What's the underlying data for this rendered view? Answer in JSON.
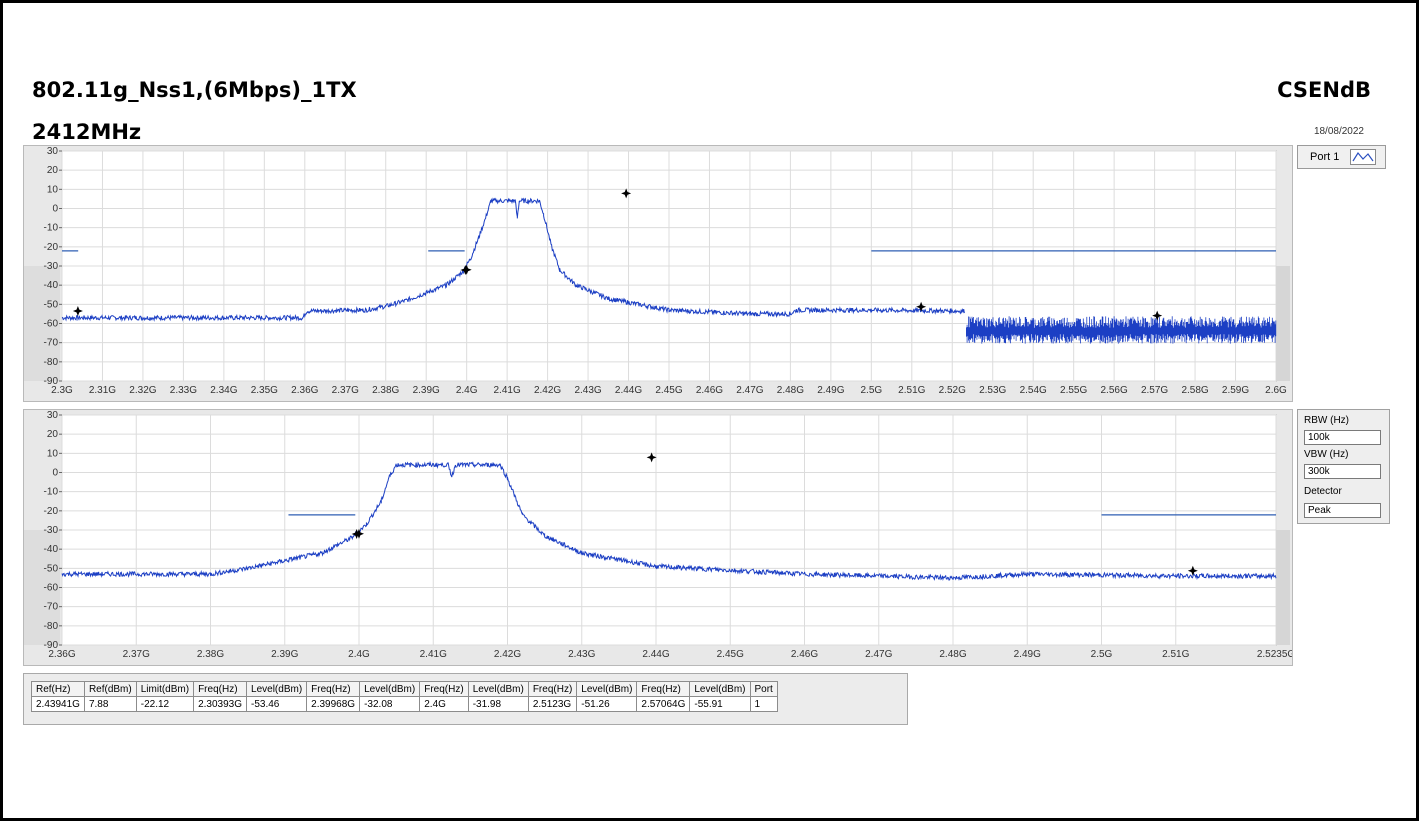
{
  "header": {
    "title": "802.11g_Nss1,(6Mbps)_1TX",
    "frequency": "2412MHz",
    "test_name": "CSENdB",
    "date": "18/08/2022"
  },
  "legend": {
    "label": "Port 1"
  },
  "settings": {
    "rbw_label": "RBW (Hz)",
    "rbw_value": "100k",
    "vbw_label": "VBW (Hz)",
    "vbw_value": "300k",
    "detector_label": "Detector",
    "detector_value": "Peak"
  },
  "colors": {
    "trace": "#1c3fc4",
    "limit": "#2f5fb3",
    "grid": "#dcdcdc",
    "shade": "#d6d6d6"
  },
  "chart_data": [
    {
      "type": "line",
      "name": "full-span",
      "xlim": [
        2.3,
        2.6
      ],
      "ylim": [
        -90,
        30
      ],
      "x_ticks": [
        2.3,
        2.31,
        2.32,
        2.33,
        2.34,
        2.35,
        2.36,
        2.37,
        2.38,
        2.39,
        2.4,
        2.41,
        2.42,
        2.43,
        2.44,
        2.45,
        2.46,
        2.47,
        2.48,
        2.49,
        2.5,
        2.51,
        2.52,
        2.53,
        2.54,
        2.55,
        2.56,
        2.57,
        2.58,
        2.59,
        2.6
      ],
      "x_tick_labels": [
        "2.3G",
        "2.31G",
        "2.32G",
        "2.33G",
        "2.34G",
        "2.35G",
        "2.36G",
        "2.37G",
        "2.38G",
        "2.39G",
        "2.4G",
        "2.41G",
        "2.42G",
        "2.43G",
        "2.44G",
        "2.45G",
        "2.46G",
        "2.47G",
        "2.48G",
        "2.49G",
        "2.5G",
        "2.51G",
        "2.52G",
        "2.53G",
        "2.54G",
        "2.55G",
        "2.56G",
        "2.57G",
        "2.58G",
        "2.59G",
        "2.6G"
      ],
      "y_ticks": [
        30,
        20,
        10,
        0,
        -10,
        -20,
        -30,
        -40,
        -50,
        -60,
        -70,
        -80,
        -90
      ],
      "trace": [
        [
          2.3,
          -57
        ],
        [
          2.33,
          -57
        ],
        [
          2.3595,
          -57
        ],
        [
          2.3605,
          -53.5
        ],
        [
          2.375,
          -53
        ],
        [
          2.38,
          -51
        ],
        [
          2.385,
          -48
        ],
        [
          2.39,
          -44
        ],
        [
          2.395,
          -40
        ],
        [
          2.399,
          -33
        ],
        [
          2.401,
          -26
        ],
        [
          2.403,
          -15
        ],
        [
          2.405,
          -3
        ],
        [
          2.406,
          4
        ],
        [
          2.412,
          4
        ],
        [
          2.4125,
          -5
        ],
        [
          2.413,
          4
        ],
        [
          2.418,
          4
        ],
        [
          2.419,
          -3
        ],
        [
          2.421,
          -20
        ],
        [
          2.423,
          -32
        ],
        [
          2.427,
          -40
        ],
        [
          2.435,
          -47
        ],
        [
          2.45,
          -53
        ],
        [
          2.47,
          -55
        ],
        [
          2.48,
          -55
        ],
        [
          2.4815,
          -53
        ],
        [
          2.5,
          -53
        ],
        [
          2.523,
          -53.5
        ]
      ],
      "noise_band": {
        "x_start": 2.5235,
        "x_end": 2.6,
        "y_high": -58,
        "y_low": -69
      },
      "limit_segments": [
        [
          2.3,
          2.304,
          -22.12
        ],
        [
          2.3905,
          2.3995,
          -22.12
        ],
        [
          2.5,
          2.6,
          -22.12
        ]
      ],
      "markers": [
        [
          2.30393,
          -53.46
        ],
        [
          2.39968,
          -32.08
        ],
        [
          2.4,
          -31.98
        ],
        [
          2.43941,
          7.88
        ],
        [
          2.5123,
          -51.26
        ],
        [
          2.57064,
          -55.91
        ]
      ],
      "shaded_range": [
        -90,
        -30
      ]
    },
    {
      "type": "line",
      "name": "zoom-span",
      "xlim": [
        2.36,
        2.5235
      ],
      "ylim": [
        -90,
        30
      ],
      "x_ticks": [
        2.36,
        2.37,
        2.38,
        2.39,
        2.4,
        2.41,
        2.42,
        2.43,
        2.44,
        2.45,
        2.46,
        2.47,
        2.48,
        2.49,
        2.5,
        2.51,
        2.5235
      ],
      "x_tick_labels": [
        "2.36G",
        "2.37G",
        "2.38G",
        "2.39G",
        "2.4G",
        "2.41G",
        "2.42G",
        "2.43G",
        "2.44G",
        "2.45G",
        "2.46G",
        "2.47G",
        "2.48G",
        "2.49G",
        "2.5G",
        "2.51G",
        "2.5235G"
      ],
      "y_ticks": [
        30,
        20,
        10,
        0,
        -10,
        -20,
        -30,
        -40,
        -50,
        -60,
        -70,
        -80,
        -90
      ],
      "trace": [
        [
          2.36,
          -53
        ],
        [
          2.38,
          -53
        ],
        [
          2.385,
          -50
        ],
        [
          2.39,
          -46
        ],
        [
          2.395,
          -42
        ],
        [
          2.399,
          -34
        ],
        [
          2.401,
          -27
        ],
        [
          2.403,
          -15
        ],
        [
          2.404,
          -3
        ],
        [
          2.405,
          4
        ],
        [
          2.412,
          4
        ],
        [
          2.4125,
          -2
        ],
        [
          2.413,
          4
        ],
        [
          2.419,
          4
        ],
        [
          2.42,
          -3
        ],
        [
          2.422,
          -22
        ],
        [
          2.425,
          -33
        ],
        [
          2.43,
          -42
        ],
        [
          2.44,
          -49
        ],
        [
          2.46,
          -53
        ],
        [
          2.48,
          -55
        ],
        [
          2.49,
          -53
        ],
        [
          2.51,
          -54
        ],
        [
          2.5235,
          -54
        ]
      ],
      "limit_segments": [
        [
          2.3905,
          2.3995,
          -22.12
        ],
        [
          2.5,
          2.5235,
          -22.12
        ]
      ],
      "markers": [
        [
          2.39968,
          -32.08
        ],
        [
          2.4,
          -31.98
        ],
        [
          2.43941,
          7.88
        ],
        [
          2.5123,
          -51.26
        ]
      ],
      "shaded_range": [
        -90,
        -30
      ]
    }
  ],
  "results_table": {
    "headers": [
      "Ref(Hz)",
      "Ref(dBm)",
      "Limit(dBm)",
      "Freq(Hz)",
      "Level(dBm)",
      "Freq(Hz)",
      "Level(dBm)",
      "Freq(Hz)",
      "Level(dBm)",
      "Freq(Hz)",
      "Level(dBm)",
      "Freq(Hz)",
      "Level(dBm)",
      "Port"
    ],
    "rows": [
      [
        "2.43941G",
        "7.88",
        "-22.12",
        "2.30393G",
        "-53.46",
        "2.39968G",
        "-32.08",
        "2.4G",
        "-31.98",
        "2.5123G",
        "-51.26",
        "2.57064G",
        "-55.91",
        "1"
      ]
    ]
  }
}
